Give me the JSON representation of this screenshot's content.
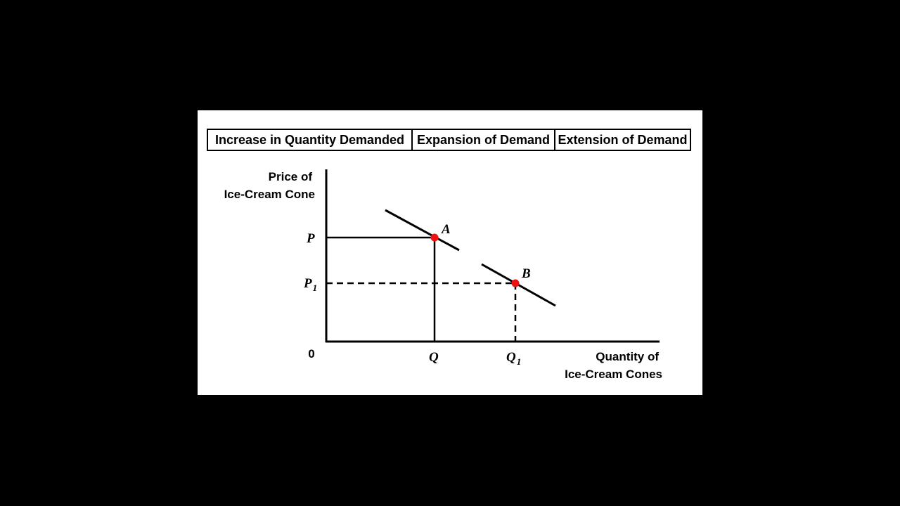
{
  "header": {
    "cells": [
      "Increase in Quantity Demanded",
      "Expansion of Demand",
      "Extension of Demand"
    ]
  },
  "diagram": {
    "y_axis_label": [
      "Price of",
      "Ice-Cream Cone"
    ],
    "x_axis_label": [
      "Quantity of",
      "Ice-Cream Cones"
    ],
    "origin_label": "0",
    "price_levels": [
      {
        "symbol": "P",
        "subscript": ""
      },
      {
        "symbol": "P",
        "subscript": "1"
      }
    ],
    "quantity_levels": [
      {
        "symbol": "Q",
        "subscript": ""
      },
      {
        "symbol": "Q",
        "subscript": "1"
      }
    ],
    "points": [
      {
        "label": "A"
      },
      {
        "label": "B"
      }
    ],
    "colors": {
      "background": "#000000",
      "panel": "#ffffff",
      "lines": "#000000",
      "points": "#ee1111"
    }
  }
}
